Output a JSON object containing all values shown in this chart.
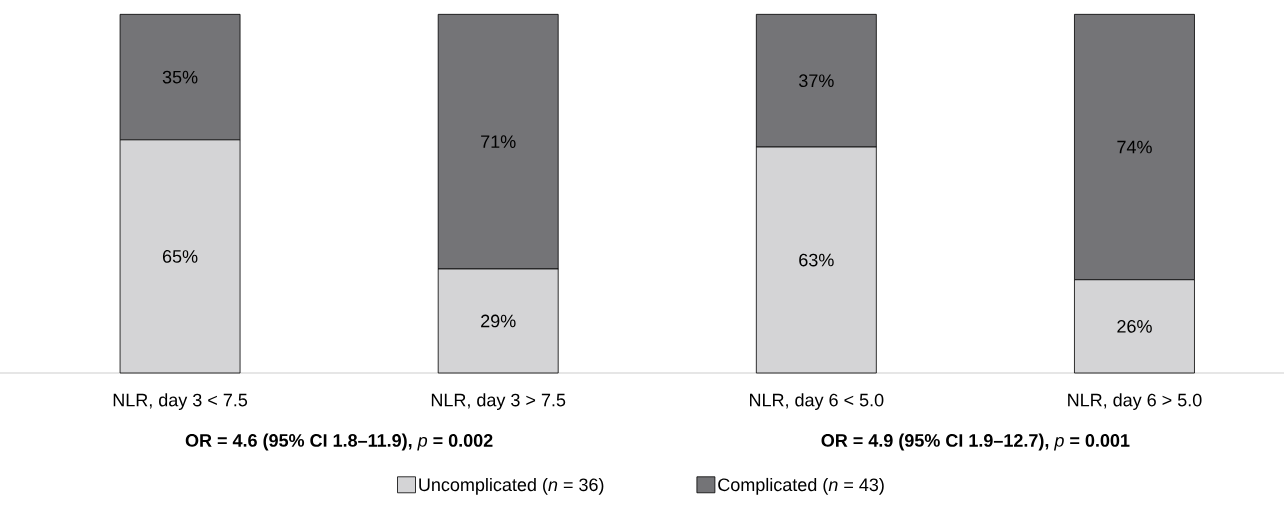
{
  "chart_data": {
    "type": "bar",
    "stacked": true,
    "categories": [
      "NLR, day 3 < 7.5",
      "NLR, day 3 > 7.5",
      "NLR, day 6 < 5.0",
      "NLR, day 6 > 5.0"
    ],
    "series": [
      {
        "name": "Uncomplicated (*n* = 36)",
        "color": "#d4d4d6",
        "values": [
          65,
          29,
          63,
          26
        ],
        "value_labels": [
          "65%",
          "29%",
          "63%",
          "26%"
        ]
      },
      {
        "name": "Complicated (*n* = 43)",
        "color": "#747477",
        "values": [
          35,
          71,
          37,
          74
        ],
        "value_labels": [
          "35%",
          "71%",
          "37%",
          "74%"
        ]
      }
    ],
    "annotations": [
      "**OR = 4.6 (95% CI 1.8–11.9),** *p* **= 0.002**",
      "**OR = 4.9 (95% CI 1.9–12.7),** *p* **= 0.001**"
    ],
    "legend": "bottom"
  }
}
